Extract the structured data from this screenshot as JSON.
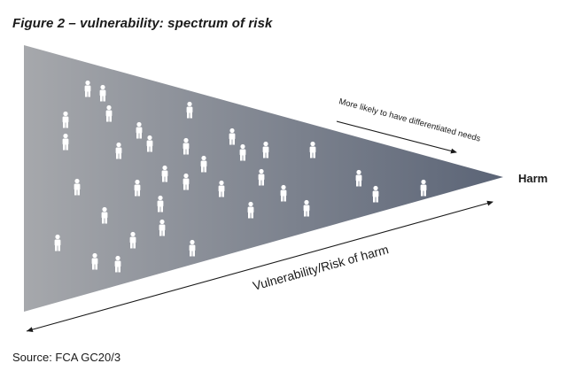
{
  "figure": {
    "title": "Figure 2 – vulnerability: spectrum of risk",
    "source": "Source: FCA GC20/3"
  },
  "diagram": {
    "end_label": "Harm",
    "top_arrow_label": "More likely to have differentiated needs",
    "bottom_arrow_label": "Vulnerability/Risk of harm",
    "person_icon_count": 35,
    "colors": {
      "gradient_start": "#a6a8ac",
      "gradient_end": "#5b6476",
      "person_icon": "#ffffff",
      "arrow": "#1a1a1a"
    },
    "icon": "person-icon"
  }
}
